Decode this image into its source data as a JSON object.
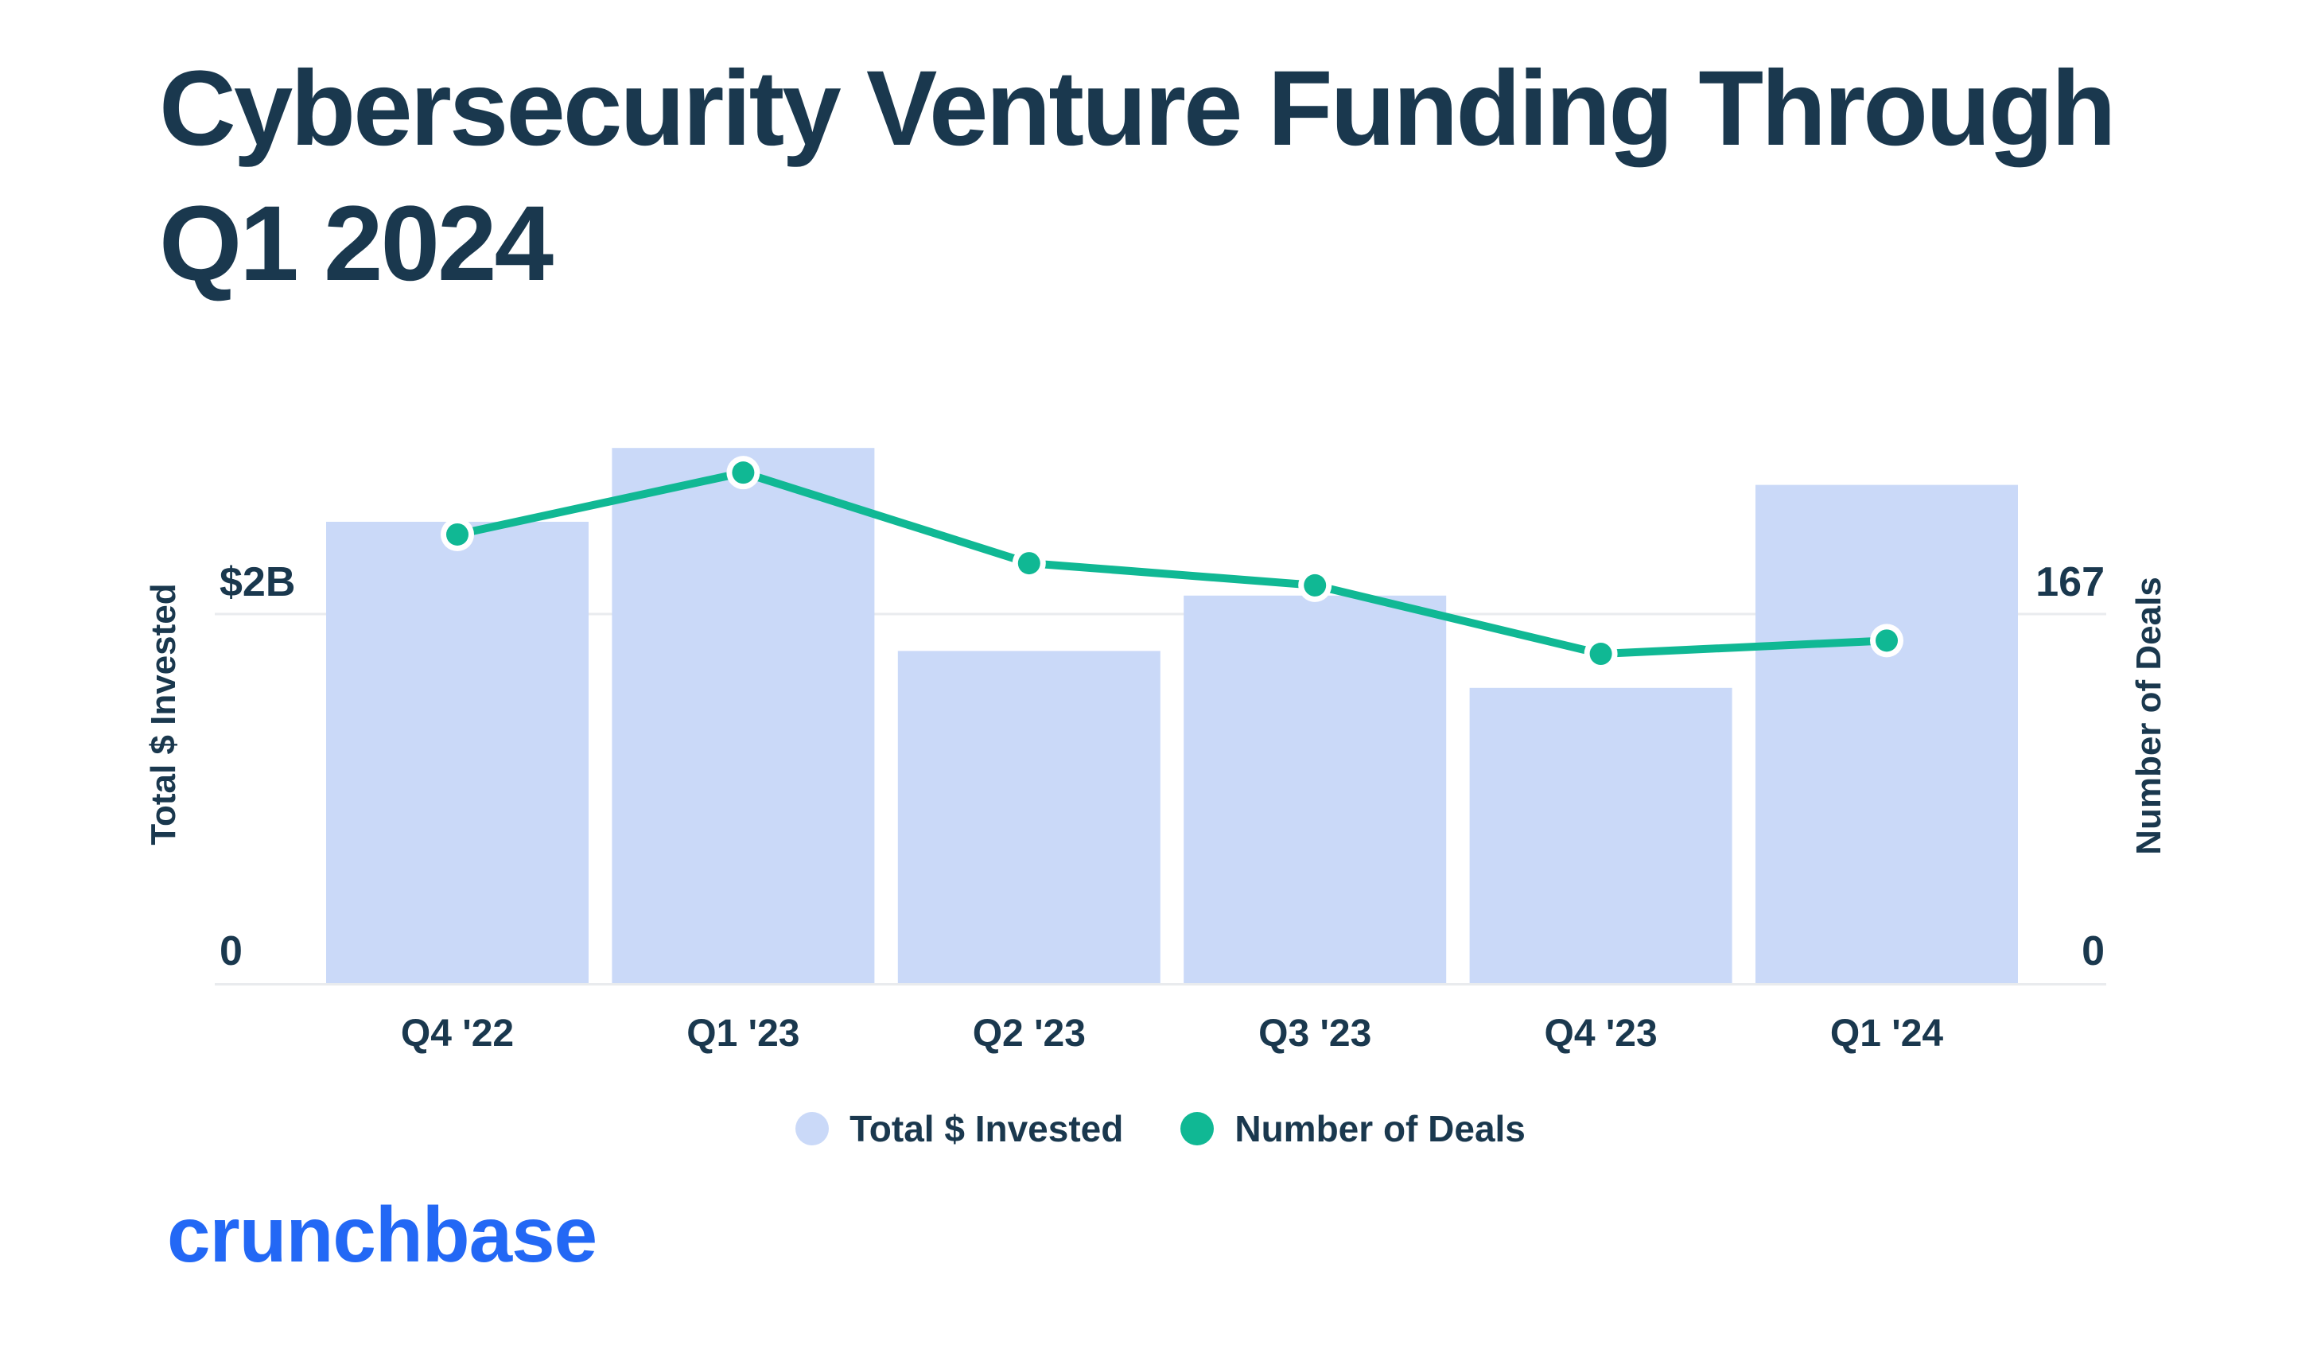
{
  "page": {
    "background": "#FFFFFF"
  },
  "title": "Cybersecurity Venture Funding Through Q1 2024",
  "title_lines": [
    "Cybersecurity Venture Funding Through",
    "Q1 2024"
  ],
  "colors": {
    "heading_text": "#1A384E",
    "bar_fill": "#CAD9F8",
    "line_green": "#10B894",
    "marker_ring": "#FFFFFF",
    "gridline": "#E9EBEE",
    "logo_blue": "#2368F5",
    "background": "#FFFFFF"
  },
  "legend": {
    "items": [
      {
        "label": "Total $ Invested",
        "swatch_color": "#CAD9F8"
      },
      {
        "label": "Number of Deals",
        "swatch_color": "#10B894"
      }
    ]
  },
  "footer": {
    "logo_text": "crunchbase"
  },
  "chart_data": {
    "type": "bar",
    "subtype": "dual-axis bar + line",
    "title": "Cybersecurity Venture Funding Through Q1 2024",
    "categories": [
      "Q4 '22",
      "Q1 '23",
      "Q2 '23",
      "Q3 '23",
      "Q4 '23",
      "Q1 '24"
    ],
    "series": [
      {
        "name": "Total $ Invested",
        "type": "bar",
        "axis": "left",
        "unit": "USD billions",
        "values": [
          2.5,
          2.9,
          1.8,
          2.1,
          1.6,
          2.7
        ],
        "color": "#CAD9F8"
      },
      {
        "name": "Number of Deals",
        "type": "line",
        "axis": "right",
        "unit": "deals",
        "values": [
          203,
          231,
          190,
          180,
          149,
          155
        ],
        "color": "#10B894",
        "note": "values estimated from marker pixel positions"
      }
    ],
    "left_axis": {
      "title": "Total $ Invested",
      "ticks": [
        {
          "label": "$2B",
          "value": 2
        },
        {
          "label": "0",
          "value": 0
        }
      ],
      "range": [
        0,
        2
      ]
    },
    "right_axis": {
      "title": "Number of Deals",
      "ticks": [
        {
          "label": "167",
          "value": 167
        },
        {
          "label": "0",
          "value": 0
        }
      ],
      "range": [
        0,
        167
      ]
    },
    "grid": {
      "horizontal_gridlines": 1,
      "gridline_left_value": 2,
      "gridline_right_value": 167
    },
    "legend_position": "bottom-center"
  }
}
